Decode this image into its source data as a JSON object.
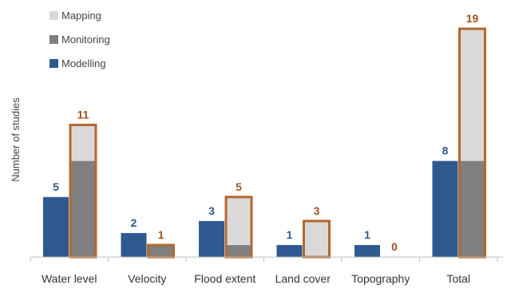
{
  "chart_data": {
    "type": "bar",
    "ylabel": "Number of studies",
    "categories": [
      "Water level",
      "Velocity",
      "Flood extent",
      "Land cover",
      "Topography",
      "Total"
    ],
    "modelling_totals": [
      5,
      2,
      3,
      1,
      1,
      8
    ],
    "observation_totals": [
      11,
      1,
      5,
      3,
      0,
      19
    ],
    "observation_breakdown": {
      "Monitoring": [
        8,
        1,
        1,
        0,
        0,
        8
      ],
      "Mapping": [
        3,
        0,
        4,
        3,
        0,
        11
      ]
    },
    "legend": {
      "position": "top-left",
      "entries": [
        "Mapping",
        "Monitoring",
        "Modelling"
      ]
    },
    "ylim": [
      0,
      20
    ],
    "grid": false,
    "colors": {
      "Modelling": "#2E5A8F",
      "Monitoring": "#7F7F7F",
      "Mapping": "#D9D9D9",
      "outline": "#B5672E",
      "modelling_label": "#2E5A8F",
      "observation_label": "#A0541E",
      "axis": "#BFBFBF"
    }
  }
}
